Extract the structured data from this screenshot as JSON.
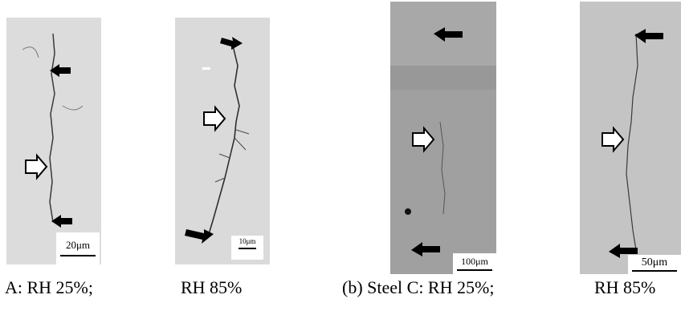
{
  "panels": [
    {
      "id": "steel-a-rh25",
      "scale_label": "20μm"
    },
    {
      "id": "steel-a-rh85",
      "scale_label": "10μm"
    },
    {
      "id": "steel-c-rh25",
      "scale_label": "100μm"
    },
    {
      "id": "steel-c-rh85",
      "scale_label": "50μm"
    }
  ],
  "captions": {
    "a_rh25": "A: RH 25%;",
    "a_rh85": "RH 85%",
    "c_rh25": "(b) Steel C: RH 25%;",
    "c_rh85": "RH 85%"
  },
  "colors": {
    "panel_a_bg": "#d9d9d9",
    "panel_c1_bg": "#9a9a9a",
    "panel_c2_bg": "#c2c2c2",
    "crack": "#3a3a3a",
    "arrow": "#000000"
  },
  "icons": [
    "filled-arrow-icon",
    "hollow-arrow-icon"
  ]
}
